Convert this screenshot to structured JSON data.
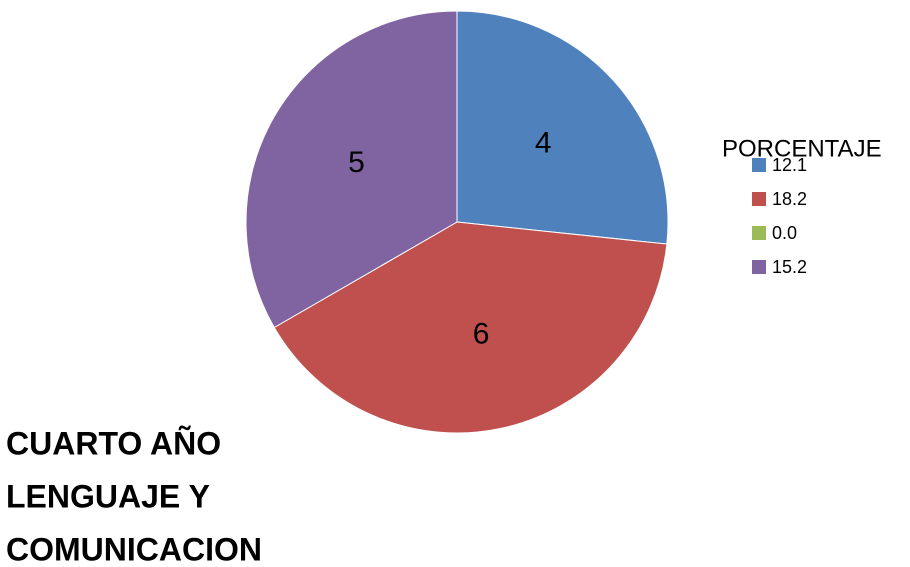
{
  "chart_data": {
    "type": "pie",
    "title": [
      "CUARTO AÑO",
      "LENGUAJE Y",
      "COMUNICACION"
    ],
    "legend_title": "PORCENTAJE",
    "categories": [
      "12.1",
      "18.2",
      "0.0",
      "15.2"
    ],
    "values": [
      4,
      6,
      0,
      5
    ],
    "colors": [
      "#4f81bd",
      "#c0504d",
      "#9bbb59",
      "#8064a2"
    ],
    "legend": "right"
  }
}
